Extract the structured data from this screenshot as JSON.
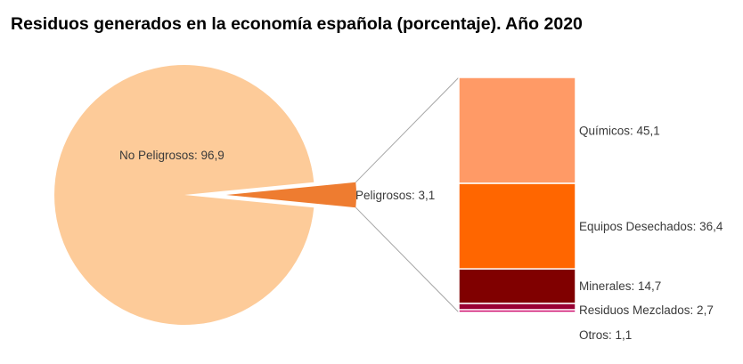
{
  "title": "Residuos generados en la economía española (porcentaje). Año 2020",
  "chart_data": [
    {
      "type": "pie",
      "categories": [
        "No Peligrosos",
        "Peligrosos"
      ],
      "values": [
        96.9,
        3.1
      ],
      "labels": [
        "No Peligrosos: 96,9",
        "Peligrosos: 3,1"
      ],
      "colors": [
        "#fdcb99",
        "#ee7c30"
      ]
    },
    {
      "type": "bar",
      "stacked": true,
      "categories": [
        "Químicos",
        "Equipos Desechados",
        "Minerales",
        "Residuos Mezclados",
        "Otros"
      ],
      "values": [
        45.1,
        36.4,
        14.7,
        2.7,
        1.1
      ],
      "labels": [
        "Químicos: 45,1",
        "Equipos Desechados: 36,4",
        "Minerales: 14,7",
        "Residuos Mezclados: 2,7",
        "Otros: 1,1"
      ],
      "colors": [
        "#ff9a66",
        "#ff6600",
        "#800000",
        "#990033",
        "#cc0066"
      ]
    }
  ]
}
